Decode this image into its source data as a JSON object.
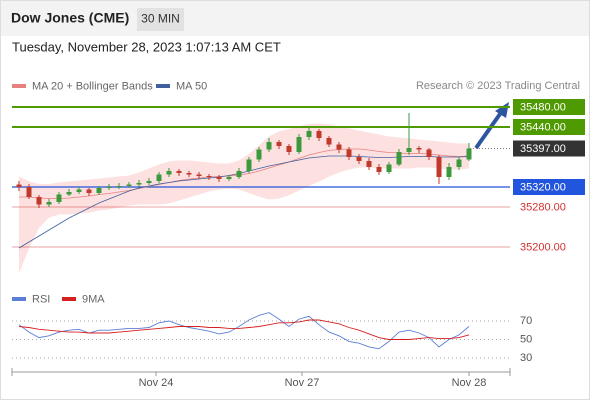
{
  "header": {
    "title": "Dow Jones (CME)",
    "timeframe": "30 MIN",
    "timestamp": "Tuesday, November 28, 2023 1:07:13 AM CET"
  },
  "chart_data": [
    {
      "type": "candlestick",
      "source": "Research © 2023 Trading Central",
      "ylim": [
        35134,
        35504
      ],
      "xlim": [
        -0.7,
        49.1
      ],
      "up_color": "#3c9a3c",
      "down_color": "#c0392b",
      "open": [
        35325,
        35320,
        35300,
        35285,
        35290,
        35305,
        35310,
        35315,
        35308,
        35318,
        35320,
        35322,
        35325,
        35328,
        35332,
        35345,
        35352,
        35348,
        35345,
        35342,
        35340,
        35336,
        35340,
        35352,
        35375,
        35395,
        35410,
        35402,
        35390,
        35420,
        35432,
        35418,
        35405,
        35395,
        35380,
        35372,
        35360,
        35350,
        35365,
        35390,
        35398,
        35395,
        35380,
        35340,
        35360,
        35375
      ],
      "high": [
        35332,
        35326,
        35304,
        35296,
        35310,
        35316,
        35320,
        35318,
        35322,
        35326,
        35328,
        35330,
        35334,
        35338,
        35350,
        35358,
        35356,
        35352,
        35350,
        35346,
        35344,
        35344,
        35358,
        35380,
        35400,
        35418,
        35414,
        35406,
        35426,
        35440,
        35436,
        35422,
        35410,
        35400,
        35386,
        35378,
        35366,
        35370,
        35396,
        35468,
        35402,
        35398,
        35384,
        35368,
        35380,
        35408
      ],
      "low": [
        35312,
        35296,
        35278,
        35280,
        35286,
        35302,
        35306,
        35302,
        35304,
        35314,
        35316,
        35318,
        35320,
        35324,
        35328,
        35340,
        35342,
        35340,
        35336,
        35334,
        35330,
        35332,
        35336,
        35348,
        35370,
        35390,
        35396,
        35384,
        35386,
        35414,
        35412,
        35400,
        35388,
        35374,
        35366,
        35354,
        35344,
        35346,
        35362,
        35384,
        35388,
        35374,
        35326,
        35334,
        35354,
        35372
      ],
      "close": [
        35320,
        35300,
        35285,
        35290,
        35305,
        35310,
        35315,
        35308,
        35318,
        35320,
        35322,
        35325,
        35328,
        35332,
        35345,
        35352,
        35348,
        35345,
        35342,
        35340,
        35336,
        35340,
        35352,
        35375,
        35395,
        35410,
        35402,
        35390,
        35420,
        35432,
        35418,
        35405,
        35395,
        35380,
        35372,
        35360,
        35350,
        35365,
        35390,
        35398,
        35395,
        35380,
        35340,
        35360,
        35375,
        35397
      ],
      "series": [
        {
          "name": "MA 20 + Bollinger Bands",
          "color": "#e88080",
          "band_color": "#fde0e0",
          "values": [
            35300,
            35300,
            35298,
            35297,
            35297,
            35298,
            35300,
            35302,
            35305,
            35307,
            35310,
            35313,
            35317,
            35321,
            35325,
            35329,
            35333,
            35336,
            35338,
            35340,
            35341,
            35342,
            35344,
            35347,
            35352,
            35358,
            35364,
            35370,
            35377,
            35384,
            35389,
            35393,
            35395,
            35396,
            35396,
            35394,
            35391,
            35389,
            35388,
            35387,
            35387,
            35386,
            35384,
            35382,
            35381,
            35382
          ],
          "upper": [
            35340,
            35330,
            35325,
            35325,
            35328,
            35330,
            35332,
            35334,
            35336,
            35338,
            35340,
            35342,
            35348,
            35356,
            35364,
            35370,
            35372,
            35372,
            35370,
            35368,
            35366,
            35366,
            35372,
            35385,
            35402,
            35420,
            35430,
            35435,
            35440,
            35445,
            35446,
            35444,
            35440,
            35436,
            35432,
            35428,
            35424,
            35420,
            35418,
            35416,
            35414,
            35412,
            35410,
            35408,
            35406,
            35406
          ],
          "lower": [
            35150,
            35200,
            35240,
            35260,
            35266,
            35266,
            35268,
            35270,
            35274,
            35276,
            35280,
            35284,
            35286,
            35286,
            35286,
            35288,
            35294,
            35300,
            35306,
            35312,
            35316,
            35318,
            35316,
            35309,
            35302,
            35296,
            35298,
            35305,
            35314,
            35323,
            35332,
            35342,
            35350,
            35356,
            35360,
            35360,
            35358,
            35358,
            35358,
            35358,
            35360,
            35360,
            35358,
            35356,
            35356,
            35358
          ]
        },
        {
          "name": "MA 50",
          "color": "#3f5f9f",
          "values": [
            35198,
            35210,
            35222,
            35234,
            35246,
            35258,
            35268,
            35278,
            35288,
            35296,
            35304,
            35312,
            35318,
            35322,
            35326,
            35329,
            35332,
            35334,
            35336,
            35338,
            35340,
            35343,
            35347,
            35352,
            35357,
            35362,
            35366,
            35370,
            35374,
            35378,
            35380,
            35382,
            35382,
            35382,
            35381,
            35380,
            35379,
            35379,
            35380,
            35381,
            35381,
            35381,
            35380,
            35380,
            35380,
            35381
          ]
        }
      ],
      "levels": [
        {
          "value": 35480,
          "label": "35480.00",
          "color": "#4f9a00",
          "style": "box"
        },
        {
          "value": 35440,
          "label": "35440.00",
          "color": "#4f9a00",
          "style": "box"
        },
        {
          "value": 35397,
          "label": "35397.00",
          "color": "#333333",
          "style": "current"
        },
        {
          "value": 35320,
          "label": "35320.00",
          "color": "#2255dd",
          "style": "box"
        },
        {
          "value": 35280,
          "label": "35280.00",
          "color": "#d23030",
          "style": "text"
        },
        {
          "value": 35200,
          "label": "35200.00",
          "color": "#d23030",
          "style": "text"
        }
      ]
    },
    {
      "type": "line",
      "ylim": [
        16,
        84
      ],
      "yticks": [
        30,
        50,
        70
      ],
      "xlim": [
        -0.7,
        49.1
      ],
      "grid": true,
      "xticks": [
        {
          "value": 13.7,
          "label": "Nov 24"
        },
        {
          "value": 28.3,
          "label": "Nov 27"
        },
        {
          "value": 45,
          "label": "Nov 28"
        }
      ],
      "series": [
        {
          "name": "RSI",
          "color": "#5b7fd6",
          "values": [
            66,
            58,
            52,
            54,
            58,
            60,
            61,
            57,
            60,
            60,
            61,
            62,
            62,
            63,
            68,
            70,
            66,
            63,
            61,
            59,
            56,
            58,
            64,
            71,
            76,
            79,
            72,
            64,
            72,
            75,
            66,
            58,
            54,
            48,
            46,
            42,
            40,
            48,
            58,
            60,
            57,
            52,
            42,
            50,
            55,
            64
          ]
        },
        {
          "name": "9MA",
          "color": "#d62020",
          "values": [
            64,
            63,
            61,
            60,
            59,
            58,
            58,
            57,
            57,
            57,
            58,
            59,
            60,
            61,
            62,
            63,
            64,
            64,
            64,
            63,
            63,
            62,
            62,
            63,
            64,
            66,
            68,
            68,
            69,
            71,
            71,
            69,
            67,
            63,
            60,
            56,
            52,
            50,
            50,
            50,
            51,
            52,
            51,
            51,
            52,
            55
          ]
        }
      ]
    }
  ]
}
